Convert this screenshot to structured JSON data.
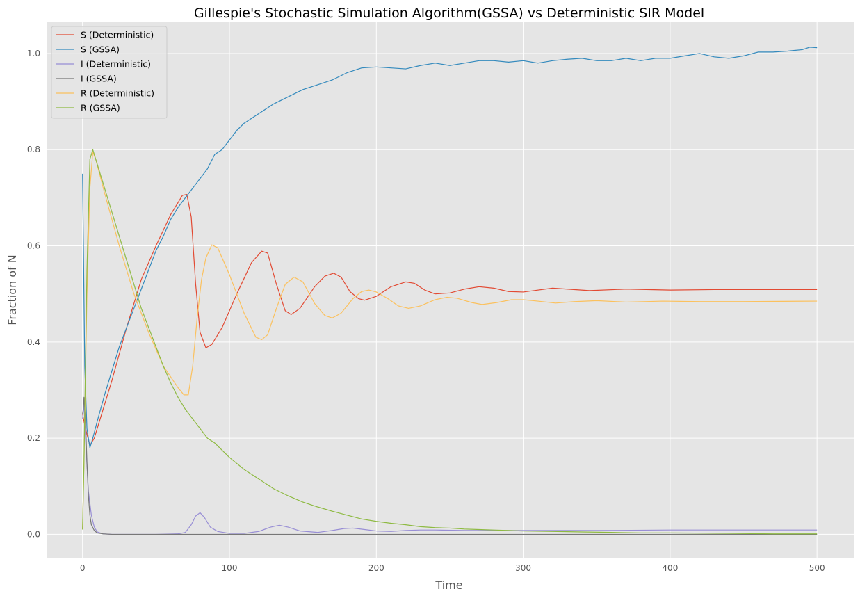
{
  "chart_data": {
    "type": "line",
    "title": "Gillespie's Stochastic Simulation Algorithm(GSSA) vs Deterministic SIR Model",
    "xlabel": "Time",
    "ylabel": "Fraction of N",
    "xlim": [
      -24,
      525
    ],
    "ylim": [
      -0.05,
      1.065
    ],
    "xticks": [
      0,
      100,
      200,
      300,
      400,
      500
    ],
    "yticks": [
      0.0,
      0.2,
      0.4,
      0.6,
      0.8,
      1.0
    ],
    "xtick_labels": [
      "0",
      "100",
      "200",
      "300",
      "400",
      "500"
    ],
    "ytick_labels": [
      "0.0",
      "0.2",
      "0.4",
      "0.6",
      "0.8",
      "1.0"
    ],
    "grid": true,
    "legend_position": "top-left",
    "series": [
      {
        "name": "S (Deterministic)",
        "color": "#E24A33",
        "points": [
          [
            0,
            0.25
          ],
          [
            2,
            0.22
          ],
          [
            5,
            0.185
          ],
          [
            8,
            0.2
          ],
          [
            12,
            0.24
          ],
          [
            20,
            0.32
          ],
          [
            30,
            0.43
          ],
          [
            40,
            0.53
          ],
          [
            50,
            0.6
          ],
          [
            60,
            0.665
          ],
          [
            68,
            0.705
          ],
          [
            71,
            0.707
          ],
          [
            74,
            0.66
          ],
          [
            77,
            0.52
          ],
          [
            80,
            0.42
          ],
          [
            84,
            0.388
          ],
          [
            88,
            0.395
          ],
          [
            95,
            0.43
          ],
          [
            105,
            0.5
          ],
          [
            115,
            0.565
          ],
          [
            122,
            0.589
          ],
          [
            126,
            0.585
          ],
          [
            132,
            0.52
          ],
          [
            138,
            0.465
          ],
          [
            142,
            0.457
          ],
          [
            148,
            0.47
          ],
          [
            158,
            0.515
          ],
          [
            165,
            0.537
          ],
          [
            171,
            0.543
          ],
          [
            176,
            0.535
          ],
          [
            182,
            0.505
          ],
          [
            188,
            0.49
          ],
          [
            192,
            0.487
          ],
          [
            200,
            0.495
          ],
          [
            210,
            0.515
          ],
          [
            220,
            0.525
          ],
          [
            226,
            0.522
          ],
          [
            233,
            0.508
          ],
          [
            240,
            0.5
          ],
          [
            250,
            0.502
          ],
          [
            260,
            0.51
          ],
          [
            270,
            0.515
          ],
          [
            280,
            0.512
          ],
          [
            290,
            0.505
          ],
          [
            300,
            0.504
          ],
          [
            320,
            0.512
          ],
          [
            345,
            0.507
          ],
          [
            370,
            0.51
          ],
          [
            400,
            0.508
          ],
          [
            430,
            0.509
          ],
          [
            460,
            0.509
          ],
          [
            500,
            0.509
          ]
        ]
      },
      {
        "name": "S (GSSA)",
        "color": "#348ABD",
        "points": [
          [
            0,
            0.75
          ],
          [
            0.6,
            0.6
          ],
          [
            1.5,
            0.35
          ],
          [
            3,
            0.22
          ],
          [
            5,
            0.18
          ],
          [
            7,
            0.2
          ],
          [
            10,
            0.235
          ],
          [
            15,
            0.29
          ],
          [
            20,
            0.34
          ],
          [
            25,
            0.39
          ],
          [
            30,
            0.43
          ],
          [
            35,
            0.47
          ],
          [
            40,
            0.51
          ],
          [
            45,
            0.55
          ],
          [
            50,
            0.59
          ],
          [
            55,
            0.62
          ],
          [
            60,
            0.655
          ],
          [
            65,
            0.68
          ],
          [
            70,
            0.7
          ],
          [
            75,
            0.72
          ],
          [
            80,
            0.74
          ],
          [
            85,
            0.76
          ],
          [
            90,
            0.79
          ],
          [
            95,
            0.8
          ],
          [
            100,
            0.82
          ],
          [
            105,
            0.84
          ],
          [
            110,
            0.855
          ],
          [
            115,
            0.865
          ],
          [
            120,
            0.875
          ],
          [
            125,
            0.885
          ],
          [
            130,
            0.895
          ],
          [
            140,
            0.91
          ],
          [
            150,
            0.925
          ],
          [
            160,
            0.935
          ],
          [
            170,
            0.945
          ],
          [
            180,
            0.96
          ],
          [
            190,
            0.97
          ],
          [
            200,
            0.972
          ],
          [
            210,
            0.97
          ],
          [
            220,
            0.968
          ],
          [
            230,
            0.975
          ],
          [
            240,
            0.98
          ],
          [
            250,
            0.975
          ],
          [
            260,
            0.98
          ],
          [
            270,
            0.985
          ],
          [
            280,
            0.985
          ],
          [
            290,
            0.982
          ],
          [
            300,
            0.985
          ],
          [
            310,
            0.98
          ],
          [
            320,
            0.985
          ],
          [
            330,
            0.988
          ],
          [
            340,
            0.99
          ],
          [
            350,
            0.985
          ],
          [
            360,
            0.985
          ],
          [
            370,
            0.99
          ],
          [
            380,
            0.985
          ],
          [
            390,
            0.99
          ],
          [
            400,
            0.99
          ],
          [
            410,
            0.995
          ],
          [
            420,
            1.0
          ],
          [
            430,
            0.993
          ],
          [
            440,
            0.99
          ],
          [
            450,
            0.995
          ],
          [
            460,
            1.003
          ],
          [
            470,
            1.003
          ],
          [
            480,
            1.005
          ],
          [
            490,
            1.008
          ],
          [
            495,
            1.013
          ],
          [
            500,
            1.012
          ]
        ]
      },
      {
        "name": "I (Deterministic)",
        "color": "#988ED5",
        "points": [
          [
            0,
            0.24
          ],
          [
            1,
            0.27
          ],
          [
            2,
            0.2
          ],
          [
            4,
            0.09
          ],
          [
            6,
            0.04
          ],
          [
            8,
            0.015
          ],
          [
            10,
            0.005
          ],
          [
            14,
            0.001
          ],
          [
            20,
            0.0
          ],
          [
            50,
            0.0
          ],
          [
            65,
            0.001
          ],
          [
            70,
            0.004
          ],
          [
            74,
            0.02
          ],
          [
            77,
            0.038
          ],
          [
            80,
            0.045
          ],
          [
            83,
            0.035
          ],
          [
            87,
            0.015
          ],
          [
            92,
            0.006
          ],
          [
            100,
            0.002
          ],
          [
            110,
            0.002
          ],
          [
            120,
            0.006
          ],
          [
            128,
            0.015
          ],
          [
            134,
            0.019
          ],
          [
            140,
            0.015
          ],
          [
            148,
            0.007
          ],
          [
            160,
            0.004
          ],
          [
            170,
            0.008
          ],
          [
            178,
            0.012
          ],
          [
            184,
            0.013
          ],
          [
            192,
            0.01
          ],
          [
            200,
            0.007
          ],
          [
            210,
            0.006
          ],
          [
            220,
            0.008
          ],
          [
            230,
            0.009
          ],
          [
            240,
            0.009
          ],
          [
            260,
            0.008
          ],
          [
            280,
            0.008
          ],
          [
            300,
            0.008
          ],
          [
            350,
            0.008
          ],
          [
            400,
            0.009
          ],
          [
            450,
            0.009
          ],
          [
            500,
            0.009
          ]
        ]
      },
      {
        "name": "I (GSSA)",
        "color": "#777777",
        "points": [
          [
            0,
            0.25
          ],
          [
            0.5,
            0.26
          ],
          [
            1,
            0.285
          ],
          [
            2,
            0.24
          ],
          [
            3,
            0.15
          ],
          [
            4,
            0.08
          ],
          [
            5,
            0.04
          ],
          [
            6,
            0.02
          ],
          [
            8,
            0.008
          ],
          [
            10,
            0.003
          ],
          [
            14,
            0.001
          ],
          [
            20,
            0.0
          ],
          [
            500,
            0.0
          ]
        ]
      },
      {
        "name": "R (Deterministic)",
        "color": "#FBC15E",
        "points": [
          [
            0,
            0.01
          ],
          [
            1,
            0.15
          ],
          [
            3,
            0.5
          ],
          [
            5,
            0.72
          ],
          [
            7,
            0.795
          ],
          [
            9,
            0.78
          ],
          [
            15,
            0.71
          ],
          [
            25,
            0.6
          ],
          [
            35,
            0.5
          ],
          [
            45,
            0.42
          ],
          [
            55,
            0.35
          ],
          [
            65,
            0.305
          ],
          [
            69,
            0.29
          ],
          [
            72,
            0.29
          ],
          [
            75,
            0.35
          ],
          [
            78,
            0.45
          ],
          [
            81,
            0.53
          ],
          [
            84,
            0.575
          ],
          [
            88,
            0.602
          ],
          [
            92,
            0.596
          ],
          [
            100,
            0.54
          ],
          [
            110,
            0.46
          ],
          [
            118,
            0.41
          ],
          [
            122,
            0.405
          ],
          [
            126,
            0.415
          ],
          [
            132,
            0.47
          ],
          [
            138,
            0.52
          ],
          [
            144,
            0.535
          ],
          [
            150,
            0.525
          ],
          [
            158,
            0.48
          ],
          [
            165,
            0.455
          ],
          [
            170,
            0.45
          ],
          [
            176,
            0.46
          ],
          [
            184,
            0.49
          ],
          [
            190,
            0.505
          ],
          [
            195,
            0.508
          ],
          [
            200,
            0.504
          ],
          [
            208,
            0.49
          ],
          [
            215,
            0.475
          ],
          [
            222,
            0.47
          ],
          [
            230,
            0.475
          ],
          [
            240,
            0.488
          ],
          [
            248,
            0.493
          ],
          [
            255,
            0.491
          ],
          [
            265,
            0.482
          ],
          [
            272,
            0.478
          ],
          [
            282,
            0.482
          ],
          [
            292,
            0.488
          ],
          [
            300,
            0.488
          ],
          [
            310,
            0.485
          ],
          [
            322,
            0.481
          ],
          [
            335,
            0.484
          ],
          [
            350,
            0.486
          ],
          [
            370,
            0.483
          ],
          [
            395,
            0.485
          ],
          [
            420,
            0.484
          ],
          [
            450,
            0.484
          ],
          [
            500,
            0.485
          ]
        ]
      },
      {
        "name": "R (GSSA)",
        "color": "#8EBA42",
        "points": [
          [
            0,
            0.01
          ],
          [
            1,
            0.15
          ],
          [
            3,
            0.55
          ],
          [
            5,
            0.78
          ],
          [
            7,
            0.8
          ],
          [
            9,
            0.78
          ],
          [
            15,
            0.72
          ],
          [
            20,
            0.67
          ],
          [
            25,
            0.62
          ],
          [
            30,
            0.57
          ],
          [
            35,
            0.52
          ],
          [
            40,
            0.47
          ],
          [
            45,
            0.43
          ],
          [
            50,
            0.39
          ],
          [
            55,
            0.35
          ],
          [
            60,
            0.315
          ],
          [
            65,
            0.285
          ],
          [
            70,
            0.26
          ],
          [
            75,
            0.24
          ],
          [
            80,
            0.22
          ],
          [
            85,
            0.2
          ],
          [
            90,
            0.19
          ],
          [
            95,
            0.175
          ],
          [
            100,
            0.16
          ],
          [
            110,
            0.135
          ],
          [
            120,
            0.115
          ],
          [
            130,
            0.095
          ],
          [
            140,
            0.08
          ],
          [
            150,
            0.067
          ],
          [
            160,
            0.057
          ],
          [
            170,
            0.048
          ],
          [
            180,
            0.04
          ],
          [
            190,
            0.032
          ],
          [
            200,
            0.027
          ],
          [
            210,
            0.023
          ],
          [
            220,
            0.02
          ],
          [
            230,
            0.016
          ],
          [
            240,
            0.014
          ],
          [
            250,
            0.013
          ],
          [
            260,
            0.011
          ],
          [
            270,
            0.01
          ],
          [
            280,
            0.009
          ],
          [
            290,
            0.008
          ],
          [
            300,
            0.007
          ],
          [
            320,
            0.006
          ],
          [
            340,
            0.005
          ],
          [
            360,
            0.004
          ],
          [
            380,
            0.003
          ],
          [
            400,
            0.003
          ],
          [
            440,
            0.002
          ],
          [
            470,
            0.001
          ],
          [
            500,
            0.001
          ]
        ]
      }
    ]
  }
}
